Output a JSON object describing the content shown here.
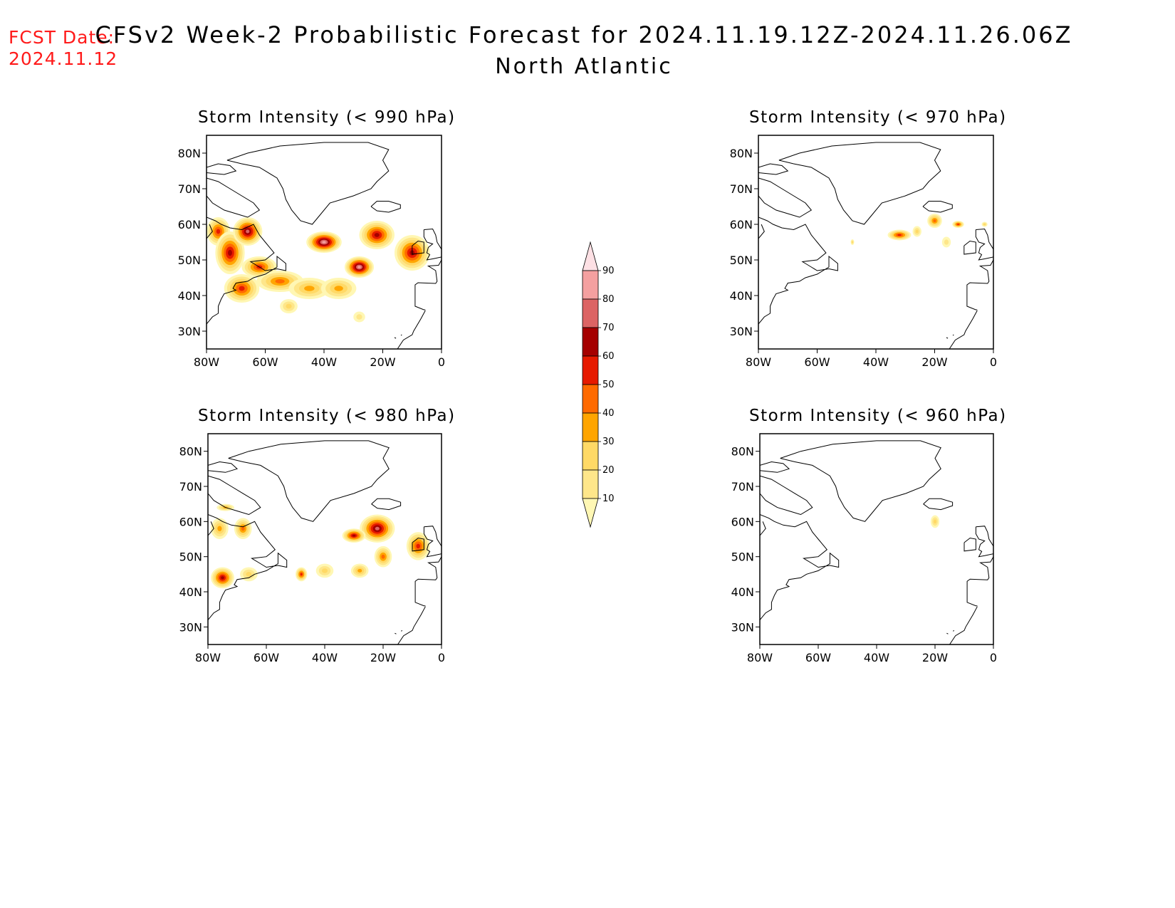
{
  "header": {
    "fcst_label": "FCST Date:",
    "fcst_date": "2024.11.12",
    "title": "CFSv2 Week-2 Probabilistic Forecast for 2024.11.19.12Z-2024.11.26.06Z",
    "region": "North Atlantic"
  },
  "axes": {
    "lon_ticks": [
      "80W",
      "60W",
      "40W",
      "20W",
      "0"
    ],
    "lat_ticks": [
      "80N",
      "70N",
      "60N",
      "50N",
      "40N",
      "30N"
    ],
    "lon_range": [
      -80,
      0
    ],
    "lat_range": [
      25,
      85
    ]
  },
  "colorbar": {
    "levels": [
      "10",
      "20",
      "30",
      "40",
      "50",
      "60",
      "70",
      "80",
      "90"
    ],
    "colors": [
      "#fff7b4",
      "#fee68a",
      "#ffd966",
      "#ffa500",
      "#ff6a00",
      "#e61a00",
      "#a50000",
      "#dc6464",
      "#f4a0a0",
      "#fde0e4"
    ]
  },
  "panels": [
    {
      "id": "p990",
      "title": "Storm Intensity (< 990 hPa)",
      "blobs": [
        {
          "lon": -76,
          "lat": 58,
          "rx": 4,
          "ry": 4,
          "level": 5
        },
        {
          "lon": -72,
          "lat": 52,
          "rx": 5,
          "ry": 6,
          "level": 6
        },
        {
          "lon": -66,
          "lat": 58,
          "rx": 5,
          "ry": 4,
          "level": 7
        },
        {
          "lon": -62,
          "lat": 48,
          "rx": 6,
          "ry": 3,
          "level": 5
        },
        {
          "lon": -55,
          "lat": 44,
          "rx": 8,
          "ry": 3,
          "level": 4
        },
        {
          "lon": -45,
          "lat": 42,
          "rx": 7,
          "ry": 3,
          "level": 3
        },
        {
          "lon": -35,
          "lat": 42,
          "rx": 6,
          "ry": 3,
          "level": 3
        },
        {
          "lon": -22,
          "lat": 57,
          "rx": 6,
          "ry": 4,
          "level": 6
        },
        {
          "lon": -10,
          "lat": 52,
          "rx": 6,
          "ry": 5,
          "level": 6
        },
        {
          "lon": -28,
          "lat": 48,
          "rx": 5,
          "ry": 3,
          "level": 8
        },
        {
          "lon": -40,
          "lat": 55,
          "rx": 6,
          "ry": 3,
          "level": 8
        },
        {
          "lon": -68,
          "lat": 42,
          "rx": 6,
          "ry": 4,
          "level": 5
        },
        {
          "lon": -52,
          "lat": 37,
          "rx": 3,
          "ry": 2,
          "level": 2
        },
        {
          "lon": -28,
          "lat": 34,
          "rx": 2,
          "ry": 1.5,
          "level": 1
        }
      ]
    },
    {
      "id": "p970",
      "title": "Storm Intensity (< 970 hPa)",
      "blobs": [
        {
          "lon": -32,
          "lat": 57,
          "rx": 4,
          "ry": 1.5,
          "level": 5
        },
        {
          "lon": -20,
          "lat": 61,
          "rx": 2.5,
          "ry": 2,
          "level": 4
        },
        {
          "lon": -12,
          "lat": 60,
          "rx": 2,
          "ry": 1,
          "level": 5
        },
        {
          "lon": -26,
          "lat": 58,
          "rx": 1.5,
          "ry": 1.5,
          "level": 2
        },
        {
          "lon": -16,
          "lat": 55,
          "rx": 1.5,
          "ry": 1.5,
          "level": 1
        },
        {
          "lon": -48,
          "lat": 55,
          "rx": 0.6,
          "ry": 0.8,
          "level": 2
        },
        {
          "lon": -3,
          "lat": 60,
          "rx": 1,
          "ry": 0.7,
          "level": 2
        }
      ]
    },
    {
      "id": "p980",
      "title": "Storm Intensity (< 980 hPa)",
      "blobs": [
        {
          "lon": -74,
          "lat": 64,
          "rx": 3,
          "ry": 1,
          "level": 3
        },
        {
          "lon": -76,
          "lat": 58,
          "rx": 3,
          "ry": 3,
          "level": 3
        },
        {
          "lon": -68,
          "lat": 58,
          "rx": 3,
          "ry": 3,
          "level": 4
        },
        {
          "lon": -75,
          "lat": 44,
          "rx": 4,
          "ry": 3,
          "level": 6
        },
        {
          "lon": -66,
          "lat": 45,
          "rx": 3,
          "ry": 2,
          "level": 2
        },
        {
          "lon": -48,
          "lat": 45,
          "rx": 2,
          "ry": 2,
          "level": 5
        },
        {
          "lon": -22,
          "lat": 58,
          "rx": 6,
          "ry": 4,
          "level": 7
        },
        {
          "lon": -8,
          "lat": 53,
          "rx": 4,
          "ry": 4,
          "level": 5
        },
        {
          "lon": -30,
          "lat": 56,
          "rx": 4,
          "ry": 2,
          "level": 6
        },
        {
          "lon": -28,
          "lat": 46,
          "rx": 3,
          "ry": 2,
          "level": 3
        },
        {
          "lon": -40,
          "lat": 46,
          "rx": 3,
          "ry": 2,
          "level": 2
        },
        {
          "lon": -20,
          "lat": 50,
          "rx": 3,
          "ry": 3,
          "level": 4
        }
      ]
    },
    {
      "id": "p960",
      "title": "Storm Intensity (< 960 hPa)",
      "blobs": [
        {
          "lon": -20,
          "lat": 60,
          "rx": 1.5,
          "ry": 1.8,
          "level": 2
        }
      ]
    }
  ]
}
